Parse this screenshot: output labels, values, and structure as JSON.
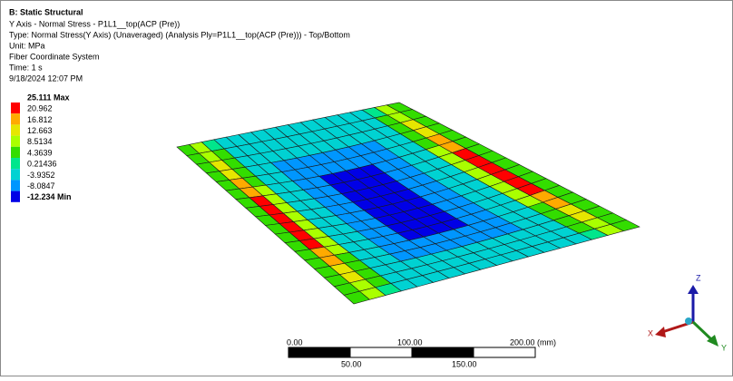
{
  "header": {
    "title": "B: Static Structural",
    "lines": [
      "Y Axis - Normal Stress - P1L1__top(ACP (Pre))",
      "Type: Normal Stress(Y Axis) (Unaveraged) (Analysis Ply=P1L1__top(ACP (Pre))) - Top/Bottom",
      "Unit: MPa",
      "Fiber Coordinate System",
      "Time: 1 s",
      "9/18/2024 12:07 PM"
    ]
  },
  "legend": {
    "labels": [
      "25.111 Max",
      "20.962",
      "16.812",
      "12.663",
      "8.5134",
      "4.3639",
      "0.21436",
      "-3.9352",
      "-8.0847",
      "-12.234 Min"
    ],
    "colors": [
      "#ff0000",
      "#ffaa00",
      "#e6e600",
      "#aaff00",
      "#33dd00",
      "#00e68c",
      "#00d2d2",
      "#0096ff",
      "#0000e6"
    ]
  },
  "scale_bar": {
    "top_labels": [
      "0.00",
      "100.00",
      "200.00 (mm)"
    ],
    "bottom_labels": [
      "50.00",
      "150.00"
    ]
  },
  "triad": {
    "z": "Z",
    "x": "X",
    "y": "Y"
  }
}
